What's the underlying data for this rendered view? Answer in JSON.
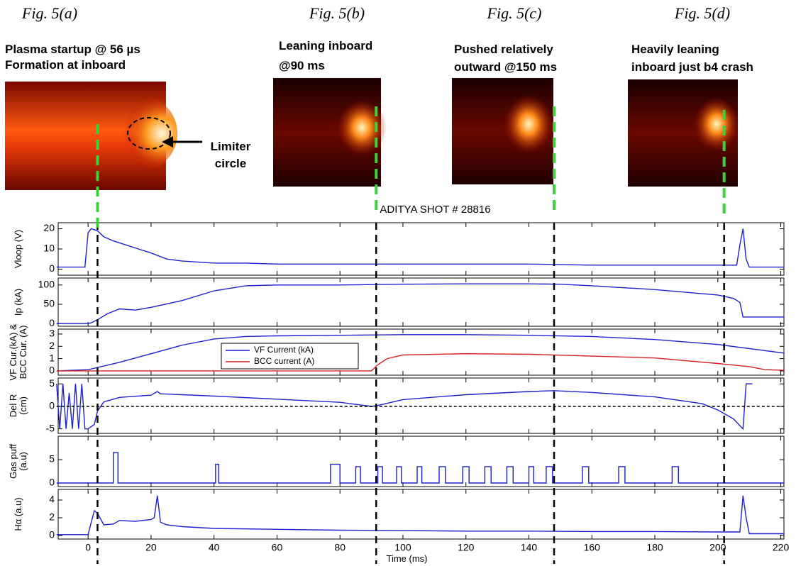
{
  "figures": [
    {
      "label": "Fig. 5(a)",
      "caption": [
        "Plasma startup @ 56 µs",
        "Formation at inboard"
      ]
    },
    {
      "label": "Fig. 5(b)",
      "caption": [
        "Leaning inboard",
        "@90 ms"
      ]
    },
    {
      "label": "Fig. 5(c)",
      "caption": [
        "Pushed relatively",
        "outward @150 ms"
      ]
    },
    {
      "label": "Fig. 5(d)",
      "caption": [
        "Heavily leaning",
        "inboard just b4 crash"
      ]
    }
  ],
  "annotation": [
    "Limiter",
    "circle"
  ],
  "markers": [
    3,
    91.5,
    148,
    202
  ],
  "chart_data": [
    {
      "type": "line",
      "title": "ADITYA SHOT # 28816",
      "ylabel": [
        "Vloop (V)"
      ],
      "xlim": [
        -9.5,
        221
      ],
      "ylim": [
        -3,
        23
      ],
      "yticks": [
        0,
        10,
        20
      ],
      "series": [
        {
          "color": "#1f1fd0",
          "x": [
            -10,
            -1,
            0,
            1,
            3,
            5,
            8,
            12,
            16,
            20,
            25,
            30,
            40,
            50,
            60,
            80,
            100,
            120,
            140,
            160,
            180,
            200,
            206,
            207,
            208,
            209,
            210,
            212,
            221
          ],
          "values": [
            1,
            1,
            18,
            20,
            19,
            16,
            14,
            12,
            10,
            8,
            5,
            4,
            3,
            3,
            2.5,
            2.5,
            2.5,
            2.5,
            2.5,
            2,
            2,
            2,
            2,
            12,
            20,
            5,
            1,
            1,
            1
          ]
        }
      ]
    },
    {
      "type": "line",
      "ylabel": [
        "Ip (kA)"
      ],
      "xlim": [
        -9.5,
        221
      ],
      "ylim": [
        -7,
        118
      ],
      "yticks": [
        0,
        50,
        100
      ],
      "series": [
        {
          "color": "#1f1fd0",
          "x": [
            -10,
            0,
            1,
            3,
            6,
            10,
            15,
            20,
            30,
            40,
            50,
            60,
            80,
            100,
            120,
            140,
            150,
            160,
            180,
            200,
            205,
            207,
            208,
            221
          ],
          "values": [
            0,
            0,
            2,
            10,
            25,
            38,
            35,
            42,
            60,
            85,
            98,
            100,
            100,
            102,
            103,
            103,
            102,
            98,
            88,
            74,
            65,
            55,
            17,
            17
          ]
        }
      ]
    },
    {
      "type": "line",
      "ylabel": [
        "VF Cur.(kA) &",
        "BCC Cur. (A)"
      ],
      "xlim": [
        -9.5,
        221
      ],
      "ylim": [
        -0.35,
        3.4
      ],
      "yticks": [
        0,
        1,
        2,
        3
      ],
      "series": [
        {
          "name": "VF Current (kA)",
          "color": "#1f1fd0",
          "x": [
            -10,
            0,
            10,
            20,
            30,
            40,
            50,
            60,
            80,
            100,
            120,
            140,
            160,
            180,
            200,
            221
          ],
          "values": [
            0,
            0.1,
            0.7,
            1.4,
            2.1,
            2.6,
            2.8,
            2.85,
            2.9,
            2.95,
            2.95,
            2.9,
            2.8,
            2.55,
            2.15,
            1.45
          ]
        },
        {
          "name": "BCC current (A)",
          "color": "#d42020",
          "x": [
            -10,
            90,
            92,
            95,
            100,
            120,
            140,
            160,
            180,
            200,
            210,
            215,
            221
          ],
          "values": [
            0,
            0,
            0.5,
            1,
            1.3,
            1.4,
            1.35,
            1.2,
            1.05,
            0.6,
            0.35,
            0.1,
            0.05
          ]
        }
      ]
    },
    {
      "type": "line",
      "ylabel": [
        "Del R",
        "(cm)"
      ],
      "xlim": [
        -9.5,
        221
      ],
      "ylim": [
        -6,
        6.3
      ],
      "yticks": [
        -5,
        0,
        5
      ],
      "series": [
        {
          "color": "#1f1fd0",
          "x": [
            -10,
            -9,
            -8,
            -7,
            -6,
            -5,
            -4,
            -3,
            -2,
            -1,
            0,
            2,
            3,
            5,
            10,
            20,
            22,
            23,
            30,
            40,
            60,
            80,
            90,
            92,
            100,
            120,
            140,
            148,
            160,
            180,
            195,
            200,
            205,
            208,
            209,
            211
          ],
          "values": [
            5,
            -5,
            5,
            -5,
            3,
            -5,
            5,
            -5,
            5,
            -5,
            -5,
            -4,
            -1,
            1,
            2,
            2.5,
            3.3,
            2.8,
            2.6,
            2.3,
            1.6,
            0.9,
            0,
            0.2,
            1.5,
            2.6,
            3.3,
            3.5,
            3.1,
            2.1,
            0.6,
            -0.8,
            -2.8,
            -5,
            5,
            5
          ]
        },
        {
          "color": "#000000",
          "dash": true,
          "x": [
            -10,
            221
          ],
          "values": [
            0,
            0
          ]
        }
      ]
    },
    {
      "type": "line",
      "ylabel": [
        "Gas puff",
        "(a.u)"
      ],
      "xlim": [
        -9.5,
        221
      ],
      "ylim": [
        -0.75,
        10
      ],
      "yticks": [
        0,
        5
      ],
      "series": [
        {
          "color": "#1f1fd0",
          "x": [
            -10,
            8,
            8,
            9.5,
            9.5,
            40.5,
            40.5,
            41.5,
            41.5,
            77,
            77,
            80,
            80,
            85,
            85,
            86.5,
            86.5,
            92,
            92,
            93.5,
            93.5,
            98,
            98,
            99.5,
            99.5,
            104.5,
            104.5,
            106,
            106,
            111.5,
            111.5,
            113.5,
            113.5,
            119,
            119,
            121,
            121,
            126,
            126,
            128,
            128,
            133,
            133,
            135,
            135,
            140,
            140,
            141.5,
            141.5,
            145.5,
            145.5,
            147.5,
            147.5,
            157,
            157,
            159,
            159,
            168.5,
            168.5,
            170.5,
            170.5,
            185.5,
            185.5,
            187.5,
            187.5,
            221
          ],
          "values": [
            0,
            0,
            6.5,
            6.5,
            0,
            0,
            4,
            4,
            0,
            0,
            4,
            4,
            0,
            0,
            3.5,
            3.5,
            0,
            0,
            3.5,
            3.5,
            0,
            0,
            3.5,
            3.5,
            0,
            0,
            3.5,
            3.5,
            0,
            0,
            3.5,
            3.5,
            0,
            0,
            3.5,
            3.5,
            0,
            0,
            3.5,
            3.5,
            0,
            0,
            3.5,
            3.5,
            0,
            0,
            3.5,
            3.5,
            0,
            0,
            3.5,
            3.5,
            0,
            0,
            3.5,
            3.5,
            0,
            0,
            3.5,
            3.5,
            0,
            0,
            3.5,
            3.5,
            0,
            0
          ]
        }
      ]
    },
    {
      "type": "line",
      "ylabel": [
        "Hα (a.u)"
      ],
      "xlabel": "Time (ms)",
      "xlim": [
        -9.5,
        221
      ],
      "ylim": [
        -0.4,
        5.2
      ],
      "yticks": [
        0,
        2,
        4
      ],
      "xticks": [
        0,
        20,
        40,
        60,
        80,
        100,
        120,
        140,
        160,
        180,
        200,
        220
      ],
      "series": [
        {
          "color": "#1f1fd0",
          "x": [
            -10,
            0,
            1,
            2,
            3,
            5,
            8,
            10,
            15,
            20,
            21,
            22,
            23,
            25,
            30,
            40,
            60,
            80,
            100,
            120,
            140,
            160,
            180,
            200,
            207,
            208,
            209,
            210,
            221
          ],
          "values": [
            0.1,
            0.1,
            1.5,
            2.8,
            2.5,
            1.2,
            1.3,
            1.7,
            1.6,
            1.8,
            2,
            4.5,
            1.5,
            1.2,
            1,
            0.8,
            0.7,
            0.6,
            0.55,
            0.5,
            0.5,
            0.45,
            0.45,
            0.4,
            0.4,
            4.5,
            2,
            0.2,
            0.2
          ]
        }
      ]
    }
  ]
}
